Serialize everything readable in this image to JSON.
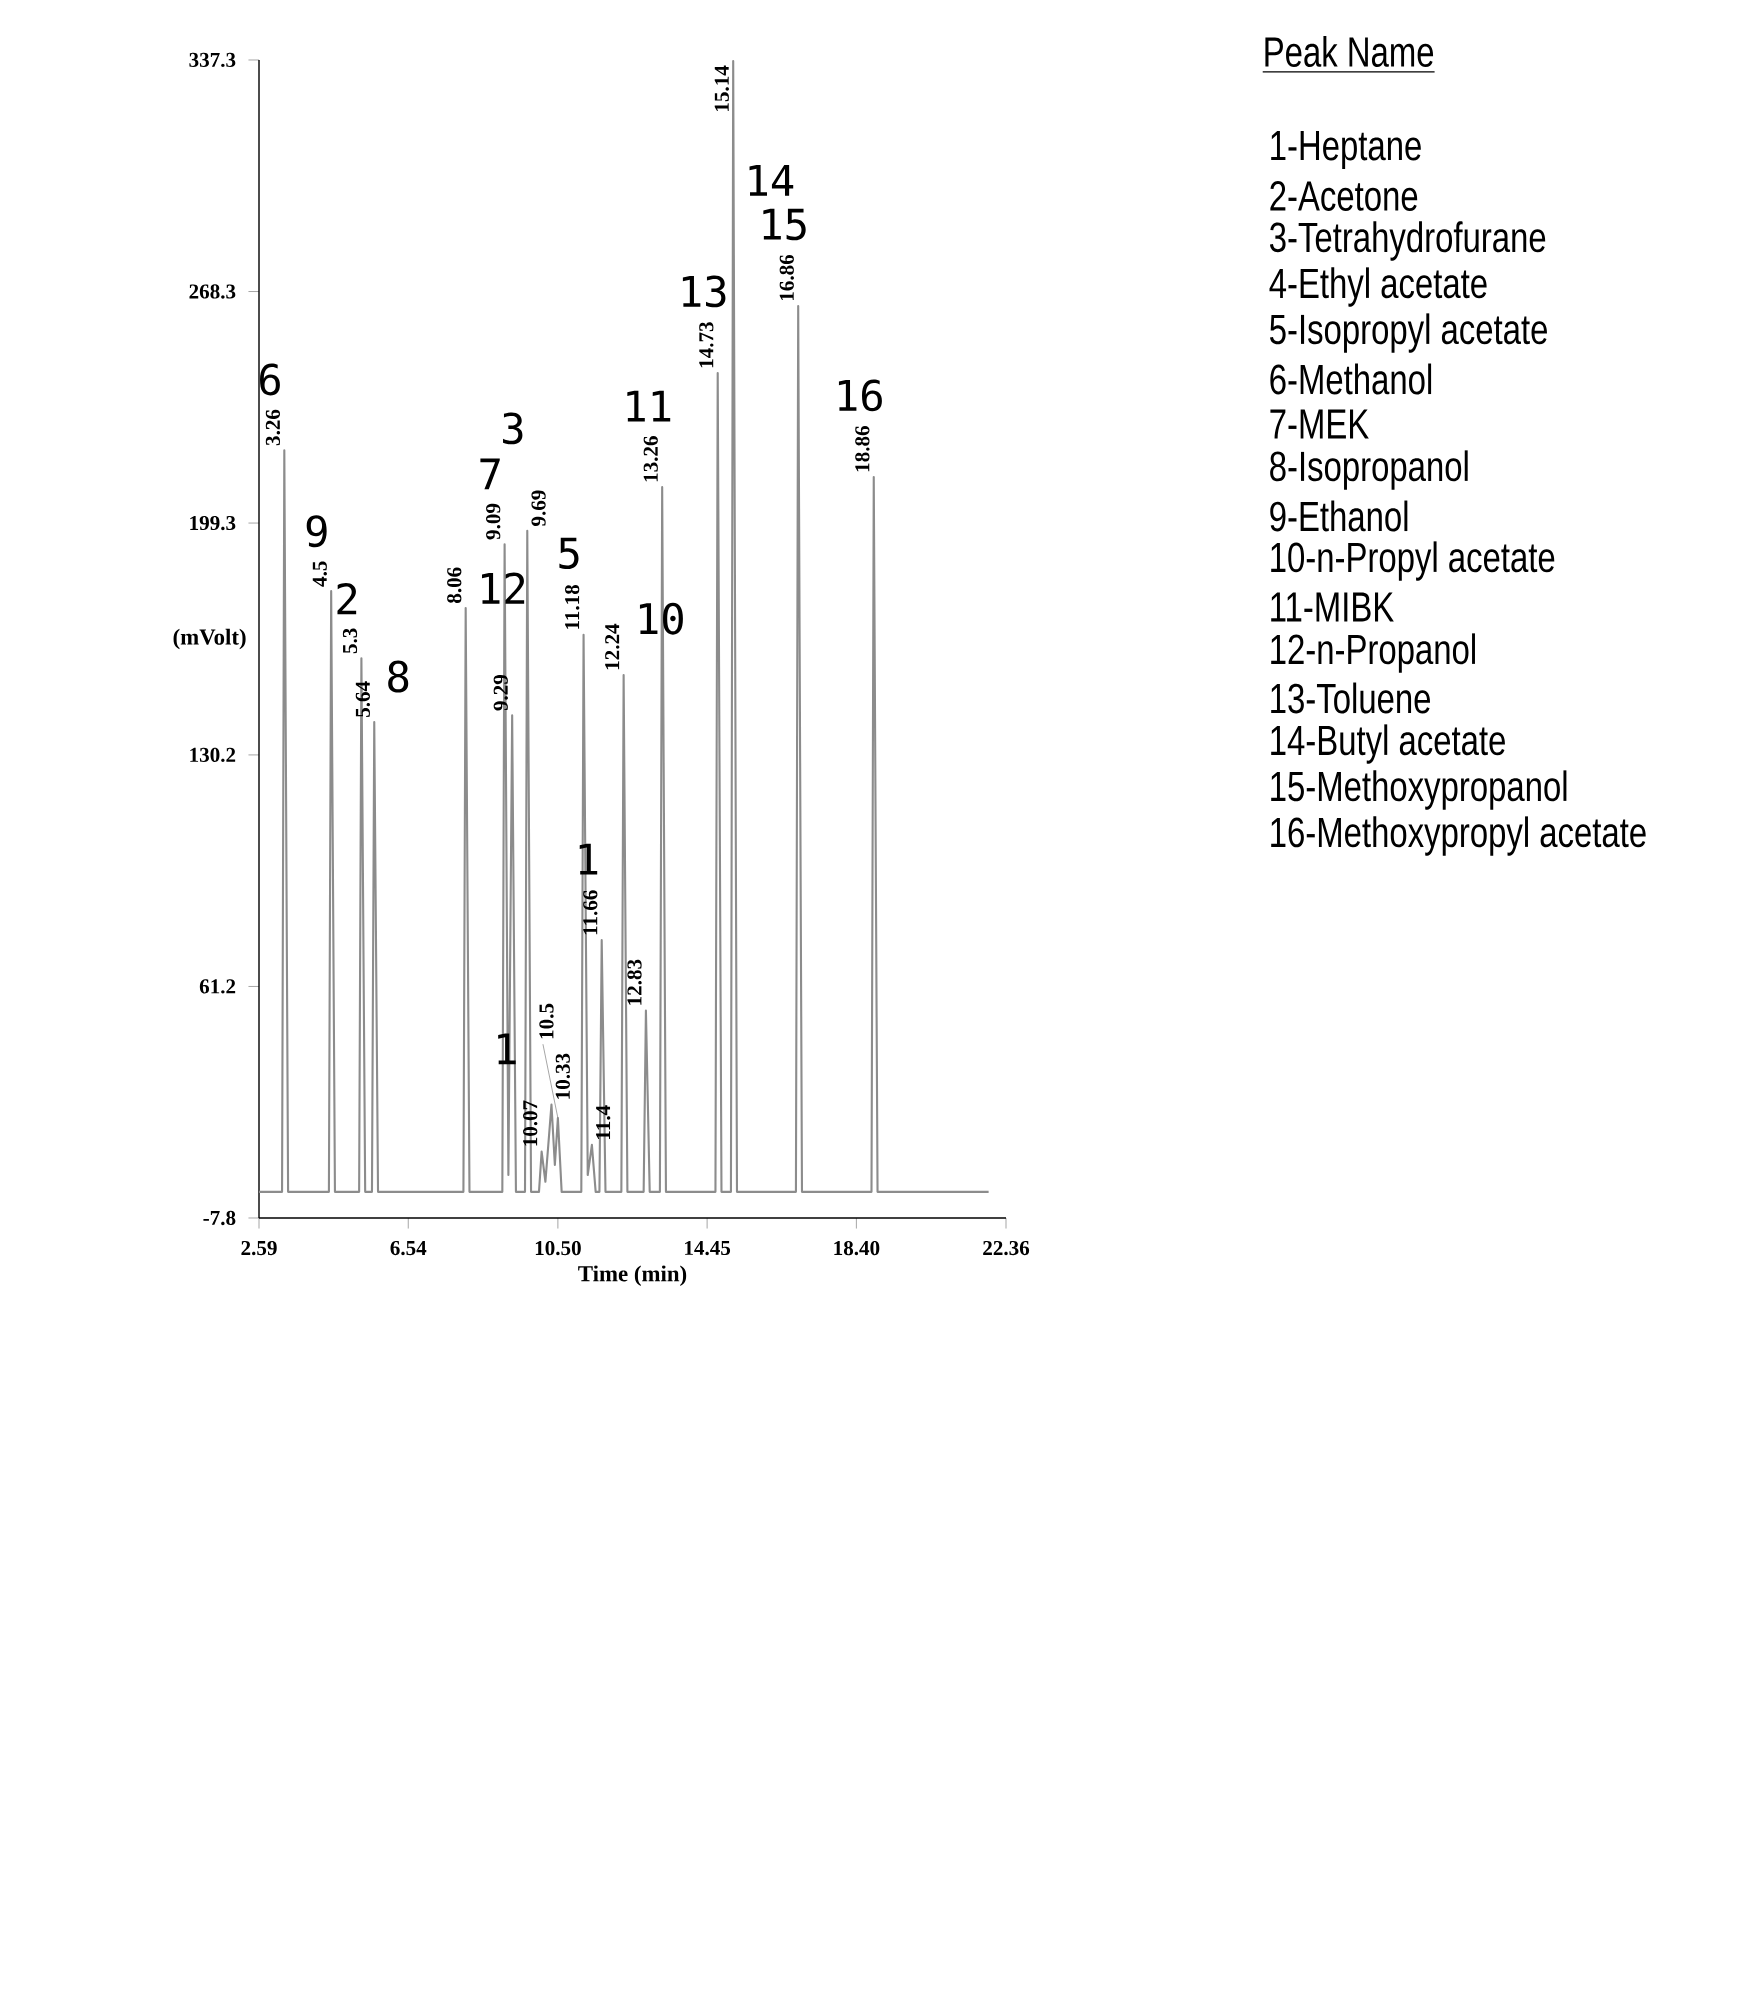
{
  "chart_data": {
    "type": "line",
    "xlabel": "Time (min)",
    "ylabel": "(mVolt)",
    "xlim": [
      2.59,
      22.36
    ],
    "ylim": [
      -7.8,
      337.3
    ],
    "xticks": [
      2.59,
      6.54,
      {
        "value": 10.5,
        "label": "10.50"
      },
      14.45,
      {
        "value": 18.4,
        "label": "18.40"
      },
      22.36
    ],
    "yticks": [
      -7.8,
      61.2,
      130.2,
      199.3,
      268.3,
      337.3
    ],
    "series": [
      {
        "color": "#8c8c8c",
        "x": [
          2.59,
          3.2,
          3.26,
          3.36,
          4.44,
          4.5,
          4.6,
          5.24,
          5.3,
          5.4,
          5.58,
          5.64,
          5.74,
          8.0,
          8.06,
          8.16,
          9.03,
          9.09,
          9.19,
          9.29,
          9.39,
          9.63,
          9.69,
          9.79,
          10.0,
          10.07,
          10.17,
          10.33,
          10.42,
          10.5,
          10.6,
          11.12,
          11.18,
          11.29,
          11.4,
          11.5,
          11.6,
          11.66,
          11.76,
          12.18,
          12.24,
          12.34,
          12.77,
          12.83,
          12.93,
          13.2,
          13.26,
          13.36,
          14.67,
          14.73,
          14.83,
          15.08,
          15.14,
          15.24,
          16.8,
          16.86,
          16.96,
          18.8,
          18.86,
          18.96,
          21.9
        ],
        "values": [
          0,
          0,
          221,
          0,
          0,
          179,
          0,
          0,
          159,
          0,
          0,
          140,
          0,
          0,
          174,
          0,
          0,
          193,
          5,
          142,
          0,
          0,
          197,
          0,
          0,
          12,
          3,
          26,
          8,
          22,
          0,
          0,
          166,
          5,
          14,
          0,
          0,
          75,
          0,
          0,
          154,
          0,
          0,
          54,
          0,
          0,
          210,
          0,
          0,
          244,
          0,
          0,
          337,
          0,
          0,
          264,
          0,
          0,
          213,
          0,
          0
        ]
      }
    ],
    "annotations": [
      "Peak Name",
      "1-Heptane",
      "2-Acetone",
      "3-Tetrahydrofurane",
      "4-Ethyl acetate",
      "5-Isopropyl acetate",
      "6-Methanol",
      "7-MEK",
      "8-Isopropanol",
      "9-Ethanol",
      "10-n-Propyl acetate",
      "11-MIBK",
      "12-n-Propanol",
      "13-Toluene",
      "14-Butyl acetate",
      "15-Methoxypropanol",
      "16-Methoxypropyl acetate",
      {
        "text": "3.26",
        "x": 3.26,
        "y": 221
      },
      {
        "text": "4.5",
        "x": 4.5,
        "y": 179
      },
      {
        "text": "5.3",
        "x": 5.3,
        "y": 159
      },
      {
        "text": "5.64",
        "x": 5.64,
        "y": 140
      },
      {
        "text": "8.06",
        "x": 8.06,
        "y": 174
      },
      {
        "text": "9.09",
        "x": 9.09,
        "y": 193
      },
      {
        "text": "9.29",
        "x": 9.29,
        "y": 142
      },
      {
        "text": "9.69",
        "x": 9.69,
        "y": 197
      },
      {
        "text": "10.07",
        "x": 10.07,
        "y": 12
      },
      {
        "text": "10.33",
        "x": 10.33,
        "y": 26
      },
      {
        "text": "10.5",
        "x": 10.5,
        "y": 22
      },
      {
        "text": "11.18",
        "x": 11.18,
        "y": 166
      },
      {
        "text": "11.4",
        "x": 11.4,
        "y": 14
      },
      {
        "text": "11.66",
        "x": 11.66,
        "y": 75
      },
      {
        "text": "12.24",
        "x": 12.24,
        "y": 154
      },
      {
        "text": "12.83",
        "x": 12.83,
        "y": 54
      },
      {
        "text": "13.26",
        "x": 13.26,
        "y": 210
      },
      {
        "text": "14.73",
        "x": 14.73,
        "y": 244
      },
      {
        "text": "15.14",
        "x": 15.14,
        "y": 337
      },
      {
        "text": "16.86",
        "x": 16.86,
        "y": 264
      },
      {
        "text": "18.86",
        "x": 18.86,
        "y": 213
      },
      {
        "text": "6",
        "x": 3.26,
        "y": 221
      },
      {
        "text": "9",
        "x": 4.5,
        "y": 179
      },
      {
        "text": "2",
        "x": 5.3,
        "y": 159
      },
      {
        "text": "8",
        "x": 5.64,
        "y": 140
      },
      {
        "text": "12",
        "x": 8.06,
        "y": 174
      },
      {
        "text": "7",
        "x": 9.09,
        "y": 193
      },
      {
        "text": "3",
        "x": 9.69,
        "y": 197
      },
      {
        "text": "1",
        "x": 10.33,
        "y": 26
      },
      {
        "text": "5",
        "x": 11.18,
        "y": 166
      },
      {
        "text": "10",
        "x": 12.24,
        "y": 154
      },
      {
        "text": "1",
        "x": 11.66,
        "y": 75
      },
      {
        "text": "11",
        "x": 13.26,
        "y": 210
      },
      {
        "text": "13",
        "x": 14.73,
        "y": 244
      },
      {
        "text": "14",
        "x": 15.14,
        "y": 337
      },
      {
        "text": "15",
        "x": 16.86,
        "y": 264
      },
      {
        "text": "16",
        "x": 18.86,
        "y": 213
      }
    ]
  }
}
